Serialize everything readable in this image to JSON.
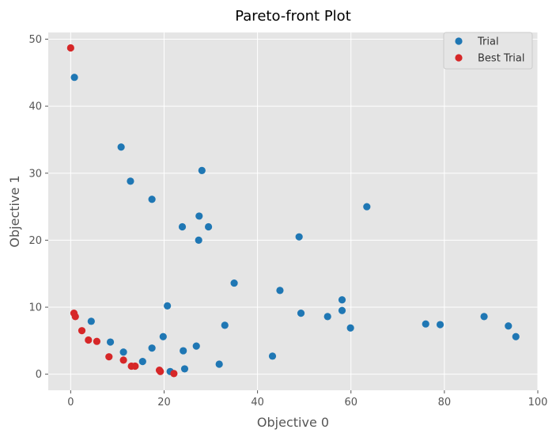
{
  "chart_data": {
    "type": "scatter",
    "title": "Pareto-front Plot",
    "xlabel": "Objective 0",
    "ylabel": "Objective 1",
    "xlim": [
      -4.8,
      100
    ],
    "ylim": [
      -2.4,
      51
    ],
    "xticks": [
      0,
      20,
      40,
      60,
      80,
      100
    ],
    "yticks": [
      0,
      10,
      20,
      30,
      40,
      50
    ],
    "grid": true,
    "legend_position": "top-right",
    "series": [
      {
        "name": "Trial",
        "color": "#1f77b4",
        "points": [
          [
            0.8,
            44.3
          ],
          [
            10.8,
            33.9
          ],
          [
            12.8,
            28.8
          ],
          [
            17.4,
            26.1
          ],
          [
            28.1,
            30.4
          ],
          [
            27.5,
            23.6
          ],
          [
            23.9,
            22.0
          ],
          [
            29.5,
            22.0
          ],
          [
            27.4,
            20.0
          ],
          [
            63.4,
            25.0
          ],
          [
            48.9,
            20.5
          ],
          [
            35.0,
            13.6
          ],
          [
            44.8,
            12.5
          ],
          [
            20.7,
            10.2
          ],
          [
            58.1,
            11.1
          ],
          [
            49.3,
            9.1
          ],
          [
            58.1,
            9.5
          ],
          [
            55.0,
            8.6
          ],
          [
            59.9,
            6.9
          ],
          [
            76.0,
            7.5
          ],
          [
            79.1,
            7.4
          ],
          [
            88.5,
            8.6
          ],
          [
            93.7,
            7.2
          ],
          [
            95.3,
            5.6
          ],
          [
            4.4,
            7.9
          ],
          [
            8.5,
            4.8
          ],
          [
            33.0,
            7.3
          ],
          [
            19.8,
            5.6
          ],
          [
            11.3,
            3.3
          ],
          [
            17.4,
            3.9
          ],
          [
            24.1,
            3.5
          ],
          [
            26.9,
            4.2
          ],
          [
            15.4,
            1.9
          ],
          [
            43.2,
            2.7
          ],
          [
            31.8,
            1.5
          ],
          [
            24.4,
            0.8
          ],
          [
            21.3,
            0.4
          ]
        ]
      },
      {
        "name": "Best Trial",
        "color": "#d62728",
        "points": [
          [
            0.0,
            48.7
          ],
          [
            0.7,
            9.1
          ],
          [
            1.0,
            8.6
          ],
          [
            2.4,
            6.5
          ],
          [
            3.8,
            5.1
          ],
          [
            5.6,
            4.9
          ],
          [
            8.2,
            2.6
          ],
          [
            11.3,
            2.1
          ],
          [
            13.0,
            1.2
          ],
          [
            13.8,
            1.2
          ],
          [
            19.0,
            0.6
          ],
          [
            19.2,
            0.4
          ],
          [
            22.1,
            0.1
          ]
        ]
      }
    ]
  }
}
